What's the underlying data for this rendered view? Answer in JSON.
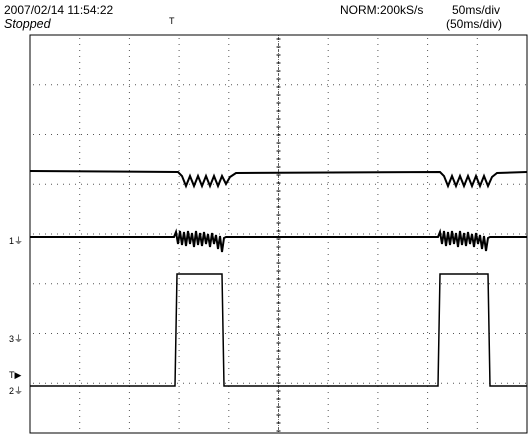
{
  "header": {
    "datetime": "2007/02/14  11:54:22",
    "status": "Stopped",
    "acq_mode": "NORM:200kS/s",
    "timebase": "50ms/div",
    "timebase_zoom": "(50ms/div)"
  },
  "trigger_marker": "T",
  "channel_labels": {
    "ch1": "1",
    "ch3": "3",
    "trig": "T",
    "ch2": "2"
  },
  "colors": {
    "trace": "#000000",
    "grid_dots": "#555555",
    "background": "#ffffff"
  }
}
